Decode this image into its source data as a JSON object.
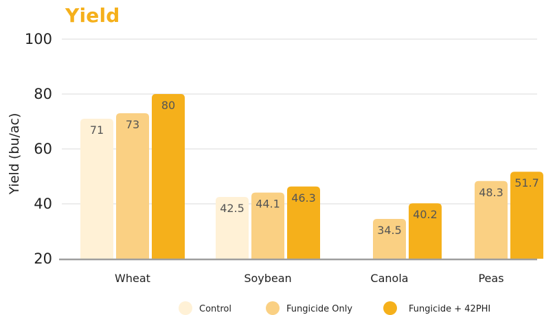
{
  "chart_data": {
    "type": "bar",
    "title": "Yield",
    "xlabel": "",
    "ylabel": "Yield (bu/ac)",
    "ylim": [
      20,
      100
    ],
    "yticks": [
      20,
      40,
      60,
      80,
      100
    ],
    "grid": true,
    "legend_position": "bottom",
    "categories": [
      "Wheat",
      "Soybean",
      "Canola",
      "Peas"
    ],
    "series": [
      {
        "name": "Control",
        "color": "#FFF1D6",
        "values": [
          71,
          42.5,
          null,
          null
        ]
      },
      {
        "name": "Fungicide Only",
        "color": "#FAD083",
        "values": [
          73,
          44.1,
          34.5,
          48.3
        ]
      },
      {
        "name": "Fungicide + 42PHI",
        "color": "#F5B01B",
        "values": [
          80,
          46.3,
          40.2,
          51.7
        ]
      }
    ]
  }
}
